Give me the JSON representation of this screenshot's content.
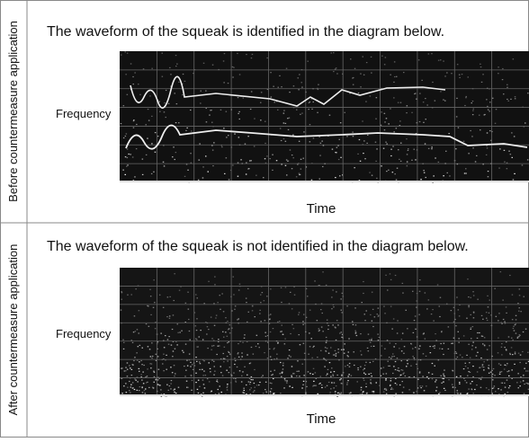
{
  "panels": [
    {
      "label": "Before countermeasure application",
      "caption": "The waveform of the squeak is identified in the diagram below.",
      "y_axis": "Frequency",
      "x_axis": "Time"
    },
    {
      "label": "After countermeasure application",
      "caption": "The waveform of the squeak is not identified in the diagram below.",
      "y_axis": "Frequency",
      "x_axis": "Time"
    }
  ]
}
